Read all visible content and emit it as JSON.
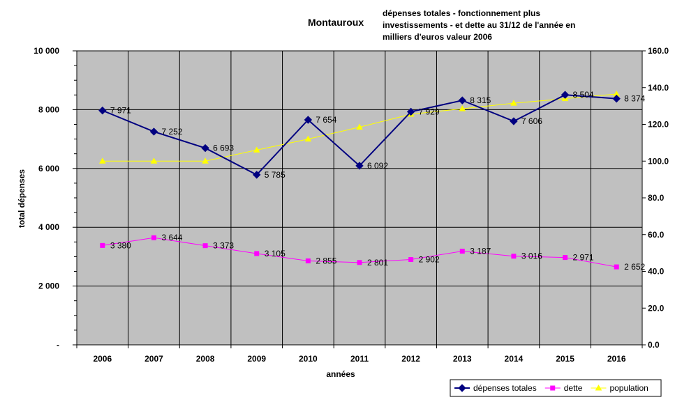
{
  "chart_data": {
    "type": "line",
    "title": "Montauroux",
    "subtitle_lines": [
      "dépenses totales - fonctionnement plus",
      "investissements - et dette au 31/12 de l'année en",
      "milliers d'euros valeur 2006"
    ],
    "xlabel": "années",
    "ylabel": "total dépenses",
    "categories": [
      "2006",
      "2007",
      "2008",
      "2009",
      "2010",
      "2011",
      "2012",
      "2013",
      "2014",
      "2015",
      "2016"
    ],
    "y_left": {
      "min": 0,
      "max": 10000,
      "ticks": [
        "-",
        "2 000",
        "4 000",
        "6 000",
        "8 000",
        "10 000"
      ]
    },
    "y_right": {
      "min": 0,
      "max": 160,
      "ticks": [
        "0.0",
        "20.0",
        "40.0",
        "60.0",
        "80.0",
        "100.0",
        "120.0",
        "140.0",
        "160.0"
      ]
    },
    "grid": true,
    "legend_position": "bottom-right",
    "series": [
      {
        "name": "dépenses totales",
        "axis": "left",
        "color": "#000080",
        "marker": "diamond",
        "values": [
          7971,
          7252,
          6693,
          5785,
          7654,
          6092,
          7929,
          8315,
          7606,
          8504,
          8374
        ],
        "labels": [
          "7 971",
          "7 252",
          "6 693",
          "5 785",
          "7 654",
          "6 092",
          "7 929",
          "8 315",
          "7 606",
          "8 504",
          "8 374"
        ]
      },
      {
        "name": "dette",
        "axis": "left",
        "color": "#ff00ff",
        "marker": "square",
        "values": [
          3380,
          3644,
          3373,
          3105,
          2855,
          2801,
          2902,
          3187,
          3016,
          2971,
          2652
        ],
        "labels": [
          "3 380",
          "3 644",
          "3 373",
          "3 105",
          "2 855",
          "2 801",
          "2 902",
          "3 187",
          "3 016",
          "2 971",
          "2 652"
        ]
      },
      {
        "name": "population",
        "axis": "right",
        "color": "#ffff00",
        "marker": "triangle",
        "values": [
          100,
          100,
          100,
          106,
          112,
          118.5,
          125.5,
          128.5,
          131.5,
          134,
          136.5
        ]
      }
    ]
  },
  "colors": {
    "plot_background": "#c0c0c0",
    "gridline": "#000000"
  }
}
